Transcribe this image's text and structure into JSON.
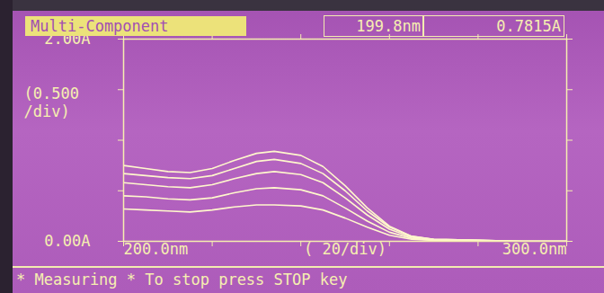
{
  "chart_data": {
    "type": "line",
    "title": "Multi-Component",
    "readout": {
      "wavelength": "199.8nm",
      "absorbance": "0.7815A"
    },
    "status": "* Measuring * To stop press STOP key",
    "x": [
      200,
      205,
      210,
      215,
      220,
      225,
      230,
      234,
      240,
      245,
      250,
      255,
      260,
      265,
      270,
      280,
      290,
      300
    ],
    "series": [
      {
        "color": "#fff8cc",
        "values": [
          0.75,
          0.72,
          0.69,
          0.68,
          0.72,
          0.8,
          0.87,
          0.89,
          0.85,
          0.74,
          0.55,
          0.33,
          0.15,
          0.05,
          0.02,
          0.01,
          0.0,
          0.0
        ]
      },
      {
        "color": "#fff8cc",
        "values": [
          0.67,
          0.65,
          0.63,
          0.62,
          0.65,
          0.72,
          0.79,
          0.81,
          0.77,
          0.67,
          0.5,
          0.3,
          0.14,
          0.05,
          0.02,
          0.01,
          0.0,
          0.0
        ]
      },
      {
        "color": "#fff8cc",
        "values": [
          0.58,
          0.56,
          0.54,
          0.53,
          0.56,
          0.62,
          0.67,
          0.69,
          0.66,
          0.58,
          0.43,
          0.26,
          0.12,
          0.04,
          0.02,
          0.01,
          0.0,
          0.0
        ]
      },
      {
        "color": "#fff8cc",
        "values": [
          0.45,
          0.44,
          0.42,
          0.41,
          0.43,
          0.48,
          0.52,
          0.53,
          0.51,
          0.45,
          0.33,
          0.2,
          0.09,
          0.03,
          0.01,
          0.0,
          0.0,
          0.0
        ]
      },
      {
        "color": "#fff8cc",
        "values": [
          0.32,
          0.31,
          0.3,
          0.29,
          0.31,
          0.34,
          0.36,
          0.36,
          0.35,
          0.31,
          0.23,
          0.14,
          0.06,
          0.02,
          0.01,
          0.0,
          0.0,
          0.0
        ]
      }
    ],
    "xlim": [
      200,
      300
    ],
    "xticks": [
      {
        "value": 200,
        "label": "200.0nm"
      },
      {
        "value": 300,
        "label": "300.0nm"
      }
    ],
    "x_division": {
      "value": 20,
      "label": "( 20/div)"
    },
    "ylim": [
      0,
      2
    ],
    "yticks": [
      {
        "value": 0,
        "label": "0.00A"
      },
      {
        "value": 2,
        "label": "2.00A"
      }
    ],
    "y_division": {
      "value": 0.5,
      "label": "(0.500\n/div)"
    }
  }
}
